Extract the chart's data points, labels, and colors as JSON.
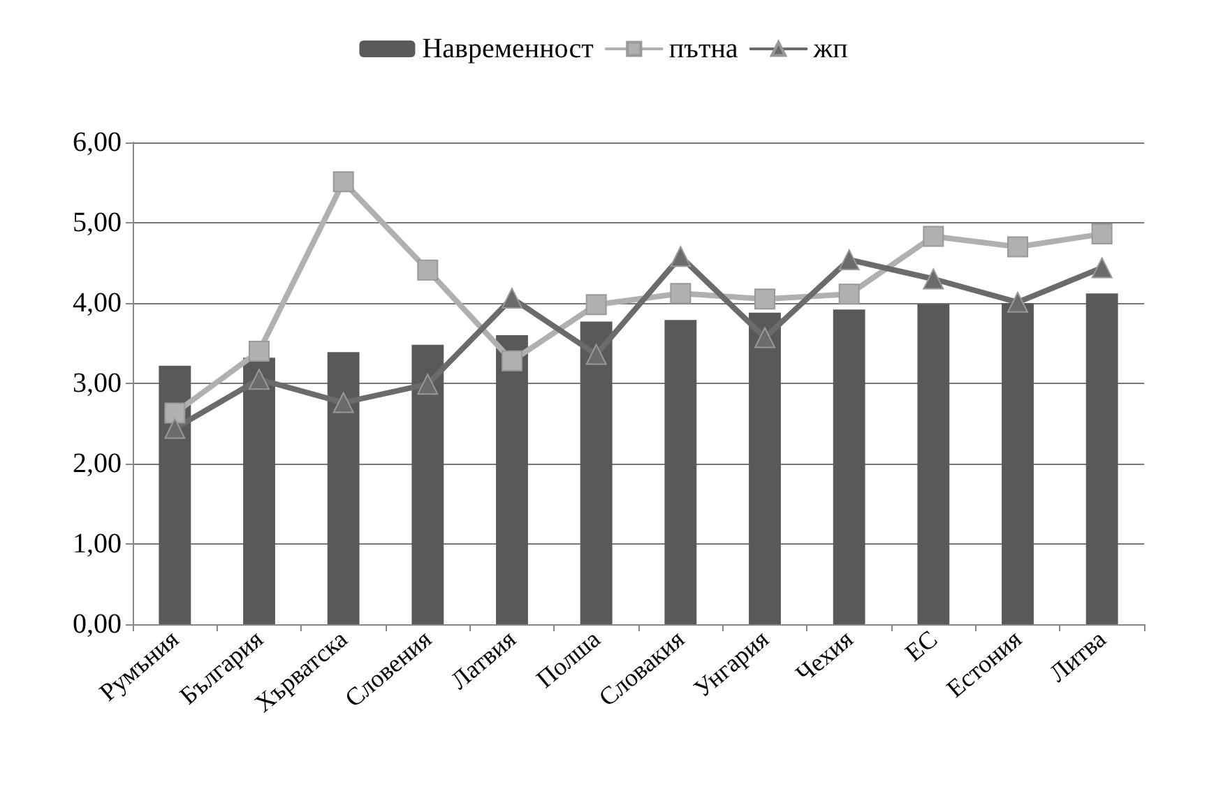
{
  "chart_data": {
    "type": "bar",
    "categories": [
      "Румъния",
      "България",
      "Хърватска",
      "Словения",
      "Латвия",
      "Полша",
      "Словакия",
      "Унгария",
      "Чехия",
      "ЕС",
      "Естония",
      "Литва"
    ],
    "series": [
      {
        "name": "Навременност",
        "color": "#595959",
        "values": [
          3.22,
          3.32,
          3.39,
          3.48,
          3.6,
          3.77,
          3.79,
          3.88,
          3.92,
          3.99,
          4.0,
          4.12
        ]
      },
      {
        "name": "пътна",
        "type": "line",
        "color": "#b0b0b0",
        "marker": "square",
        "values": [
          2.63,
          3.4,
          5.51,
          4.41,
          3.28,
          3.98,
          4.12,
          4.05,
          4.11,
          4.83,
          4.7,
          4.86
        ]
      },
      {
        "name": "жп",
        "type": "line",
        "color": "#6b6b6b",
        "marker": "triangle",
        "values": [
          2.44,
          3.05,
          2.76,
          2.99,
          4.06,
          3.36,
          4.58,
          3.57,
          4.54,
          4.3,
          4.01,
          4.44
        ]
      }
    ],
    "ylim": [
      0,
      6
    ],
    "yticks": [
      {
        "value": 0,
        "label": "0,00"
      },
      {
        "value": 1,
        "label": "1,00"
      },
      {
        "value": 2,
        "label": "2,00"
      },
      {
        "value": 3,
        "label": "3,00"
      },
      {
        "value": 4,
        "label": "4,00"
      },
      {
        "value": 5,
        "label": "5,00"
      },
      {
        "value": 6,
        "label": "6,00"
      }
    ],
    "grid": "y",
    "legend": "top"
  }
}
